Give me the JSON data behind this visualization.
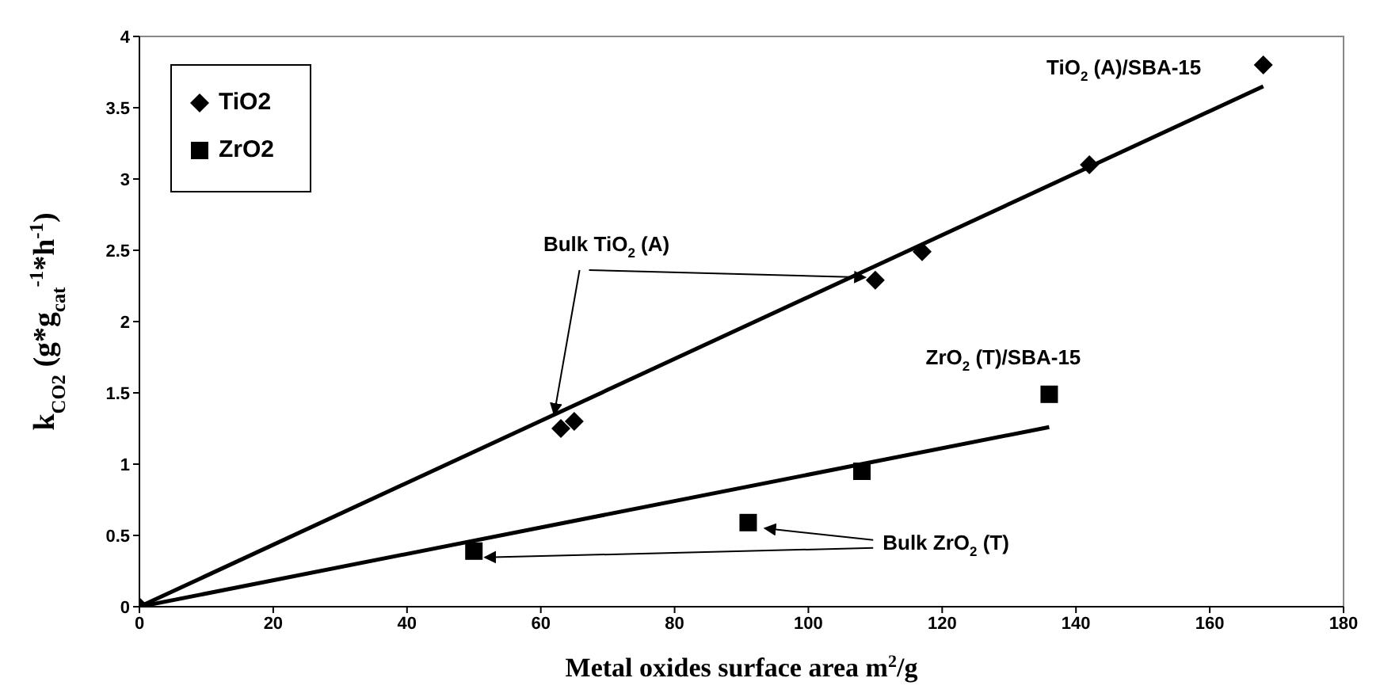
{
  "chart_data": {
    "type": "scatter",
    "xlabel": "Metal oxides surface area m$^{2}$/g",
    "ylabel": "k$_{CO2}$ (g*g$_{cat}$$^{-1}$*h$^{-1}$)",
    "xlim": [
      0,
      180
    ],
    "xticks": [
      0,
      20,
      40,
      60,
      80,
      100,
      120,
      140,
      160,
      180
    ],
    "ylim": [
      0,
      4
    ],
    "yticks": [
      0,
      0.5,
      1,
      1.5,
      2,
      2.5,
      3,
      3.5,
      4
    ],
    "legend": "top left",
    "series": [
      {
        "type": "line",
        "color": "#000000",
        "marker": "none",
        "x": [
          0,
          168
        ],
        "values": [
          0,
          3.65
        ]
      },
      {
        "type": "line",
        "color": "#000000",
        "marker": "none",
        "x": [
          0,
          136
        ],
        "values": [
          0,
          1.26
        ]
      },
      {
        "name": "TiO2",
        "color": "#000000",
        "marker": "diamond",
        "x": [
          0,
          63,
          65,
          110,
          117,
          142,
          168
        ],
        "values": [
          0,
          1.25,
          1.3,
          2.29,
          2.49,
          3.1,
          3.8
        ]
      },
      {
        "name": "ZrO2",
        "color": "#000000",
        "marker": "square",
        "x": [
          50,
          91,
          108,
          136
        ],
        "values": [
          0.39,
          0.59,
          0.95,
          1.49
        ]
      }
    ],
    "annotations": [
      "TiO$_{2}$ (A)/SBA-15",
      {
        "text": "ZrO$_{2}$ (T)/SBA-15",
        "x": 136,
        "y": 1.49
      },
      {
        "text": "Bulk TiO$_{2}$ (A)",
        "x": 62,
        "y": 1.35
      },
      {
        "text": "Bulk ZrO$_{2}$ (T)",
        "x": 50,
        "y": 0.39
      }
    ]
  }
}
